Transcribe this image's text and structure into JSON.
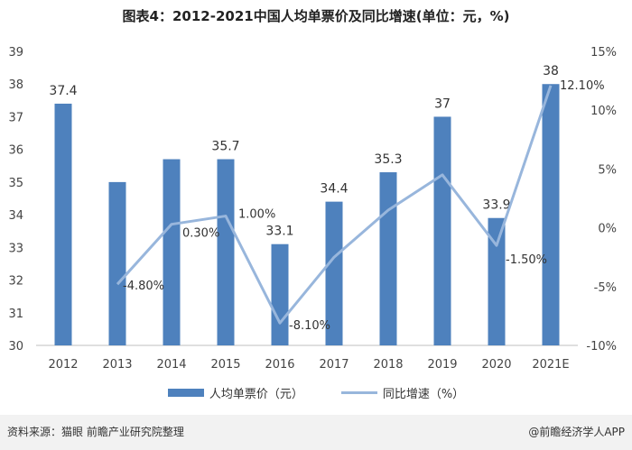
{
  "chart_data": {
    "type": "bar+line",
    "title": "图表4：2012-2021中国人均单票价及同比增速(单位：元，%)",
    "categories": [
      "2012",
      "2013",
      "2014",
      "2015",
      "2016",
      "2017",
      "2018",
      "2019",
      "2020",
      "2021E"
    ],
    "series": [
      {
        "name": "人均单票价（元）",
        "type": "bar",
        "axis": "left",
        "color": "#4e81bd",
        "values": [
          37.4,
          35.0,
          35.7,
          35.7,
          33.1,
          34.4,
          35.3,
          37.0,
          33.9,
          38.0
        ],
        "labels": [
          "37.4",
          "",
          "",
          "35.7",
          "33.1",
          "34.4",
          "35.3",
          "37",
          "33.9",
          "38"
        ]
      },
      {
        "name": "同比增速（%）",
        "type": "line",
        "axis": "right",
        "color": "#98b6dc",
        "values": [
          null,
          -4.8,
          0.3,
          1.0,
          -8.1,
          -2.5,
          1.5,
          4.5,
          -1.5,
          12.1
        ],
        "labels": [
          "",
          "-4.80%",
          "0.30%",
          "1.00%",
          "-8.10%",
          "",
          "",
          "",
          "-1.50%",
          "12.10%"
        ]
      }
    ],
    "y_left": {
      "min": 30,
      "max": 39,
      "ticks": [
        30,
        31,
        32,
        33,
        34,
        35,
        36,
        37,
        38,
        39
      ]
    },
    "y_right": {
      "min": -10,
      "max": 15,
      "ticks": [
        -10,
        -5,
        0,
        5,
        10,
        15
      ],
      "tick_labels": [
        "-10%",
        "-5%",
        "0%",
        "5%",
        "10%",
        "15%"
      ]
    },
    "grid": false,
    "legend": "bottom-center"
  },
  "footer": {
    "source": "资料来源：猫眼 前瞻产业研究院整理",
    "brand": "@前瞻经济学人APP"
  }
}
